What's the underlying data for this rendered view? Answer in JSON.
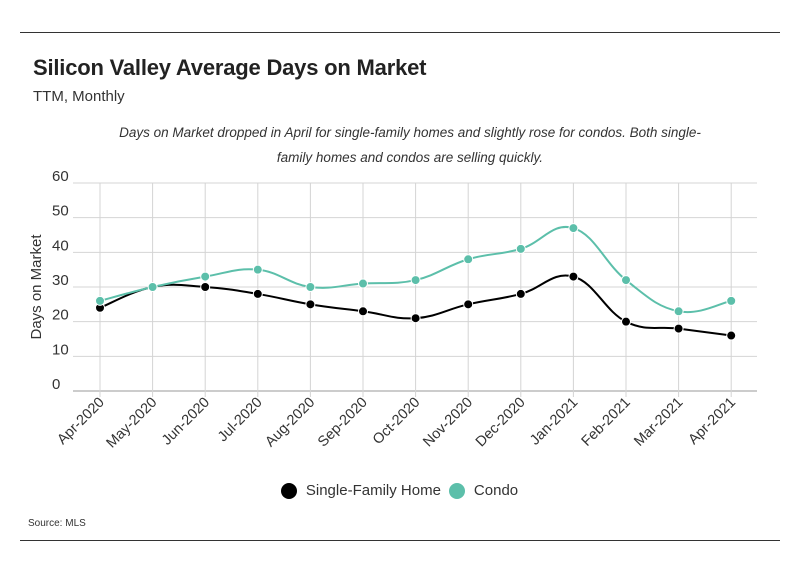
{
  "title": "Silicon Valley Average Days on Market",
  "subtitle": "TTM, Monthly",
  "note": "Days on Market dropped in April for single-family homes and slightly rose for condos. Both single-family homes and condos are selling quickly.",
  "source": "Source:  MLS",
  "chart_data": {
    "type": "line",
    "title": "Silicon Valley Average Days on Market",
    "subtitle": "TTM, Monthly",
    "xlabel": "",
    "ylabel": "Days on Market",
    "ylim": [
      0,
      60
    ],
    "yticks": [
      0,
      10,
      20,
      30,
      40,
      50,
      60
    ],
    "grid": true,
    "legend_position": "bottom",
    "categories": [
      "Apr-2020",
      "May-2020",
      "Jun-2020",
      "Jul-2020",
      "Aug-2020",
      "Sep-2020",
      "Oct-2020",
      "Nov-2020",
      "Dec-2020",
      "Jan-2021",
      "Feb-2021",
      "Mar-2021",
      "Apr-2021"
    ],
    "series": [
      {
        "name": "Single-Family Home",
        "color": "#000000",
        "values": [
          24,
          30,
          30,
          28,
          25,
          23,
          21,
          25,
          28,
          33,
          20,
          18,
          16
        ]
      },
      {
        "name": "Condo",
        "color": "#5cbfaa",
        "values": [
          26,
          30,
          33,
          35,
          30,
          31,
          32,
          38,
          41,
          47,
          32,
          23,
          26
        ]
      }
    ]
  }
}
